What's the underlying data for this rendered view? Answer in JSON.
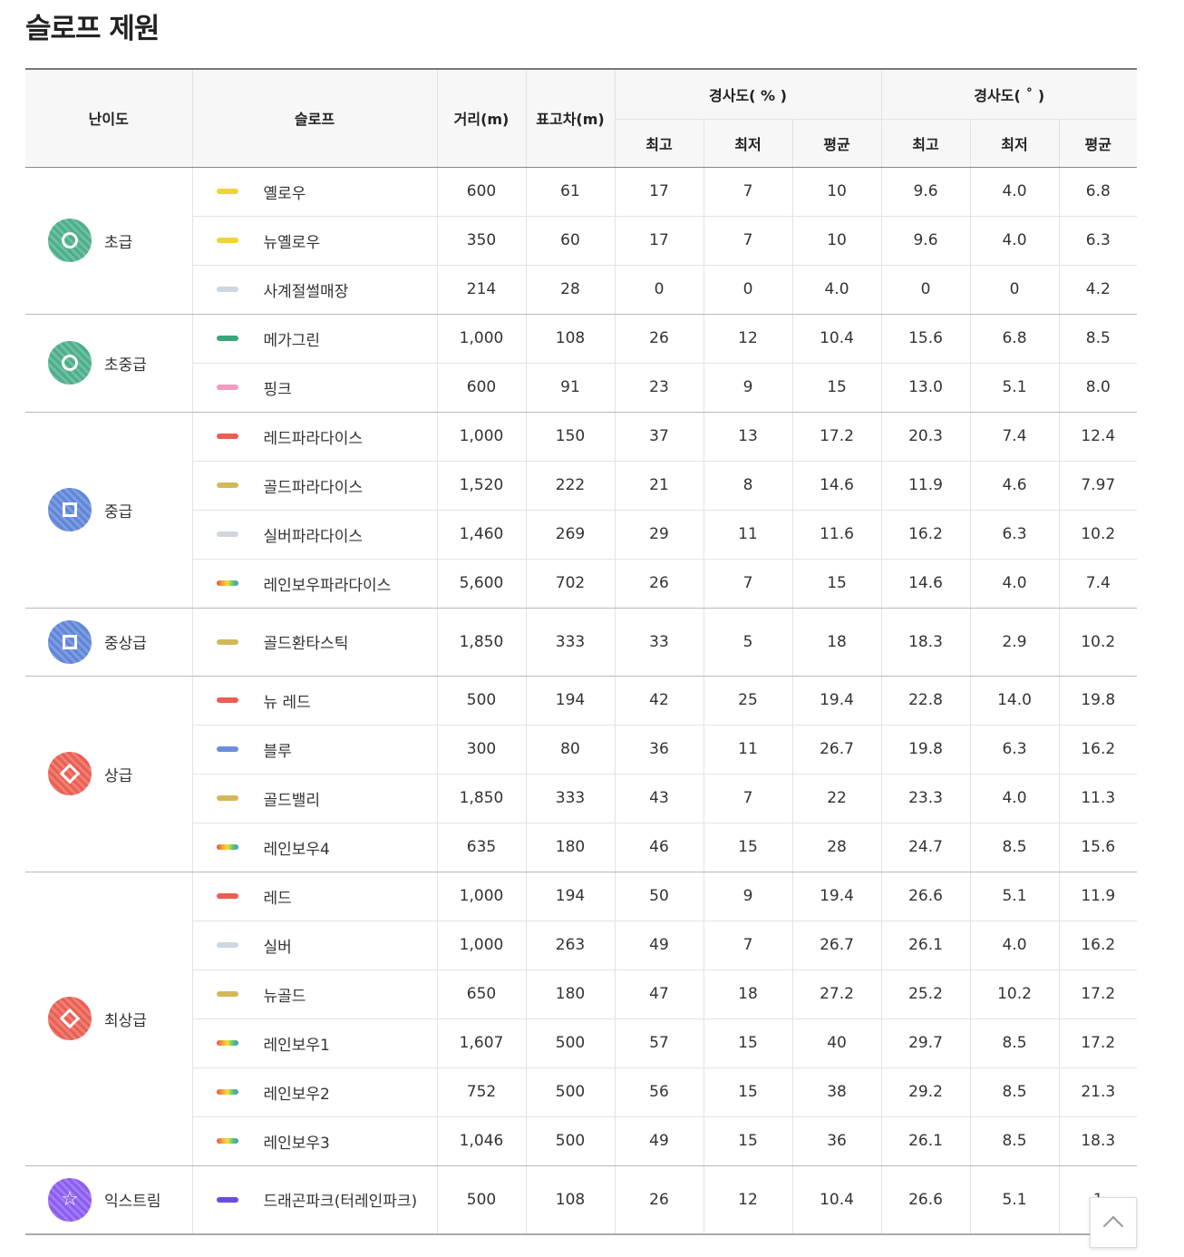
{
  "title": "슬로프 제원",
  "headers": {
    "level": "난이도",
    "slope": "슬로프",
    "distance": "거리(m)",
    "height": "표고차(m)",
    "grade_pct": "경사도( % )",
    "grade_deg": "경사도( ˚ )",
    "max": "최고",
    "min": "최저",
    "avg": "평균"
  },
  "levels": [
    {
      "name": "초급",
      "color": "#4caf8a",
      "shape": "circle",
      "slopes": [
        {
          "name": "옐로우",
          "swatch": "#f0d23c",
          "dist": "600",
          "height": "61",
          "p_max": "17",
          "p_min": "7",
          "p_avg": "10",
          "d_max": "9.6",
          "d_min": "4.0",
          "d_avg": "6.8"
        },
        {
          "name": "뉴옐로우",
          "swatch": "#f0d23c",
          "dist": "350",
          "height": "60",
          "p_max": "17",
          "p_min": "7",
          "p_avg": "10",
          "d_max": "9.6",
          "d_min": "4.0",
          "d_avg": "6.3"
        },
        {
          "name": "사계절썰매장",
          "swatch": "#cfd6df",
          "dist": "214",
          "height": "28",
          "p_max": "0",
          "p_min": "0",
          "p_avg": "4.0",
          "d_max": "0",
          "d_min": "0",
          "d_avg": "4.2"
        }
      ]
    },
    {
      "name": "초중급",
      "color": "#4caf8a",
      "shape": "circle",
      "slopes": [
        {
          "name": "메가그린",
          "swatch": "#3aa57a",
          "dist": "1,000",
          "height": "108",
          "p_max": "26",
          "p_min": "12",
          "p_avg": "10.4",
          "d_max": "15.6",
          "d_min": "6.8",
          "d_avg": "8.5"
        },
        {
          "name": "핑크",
          "swatch": "#f29bc2",
          "dist": "600",
          "height": "91",
          "p_max": "23",
          "p_min": "9",
          "p_avg": "15",
          "d_max": "13.0",
          "d_min": "5.1",
          "d_avg": "8.0"
        }
      ]
    },
    {
      "name": "중급",
      "color": "#5f86d8",
      "shape": "square",
      "slopes": [
        {
          "name": "레드파라다이스",
          "swatch": "#ea5f52",
          "dist": "1,000",
          "height": "150",
          "p_max": "37",
          "p_min": "13",
          "p_avg": "17.2",
          "d_max": "20.3",
          "d_min": "7.4",
          "d_avg": "12.4"
        },
        {
          "name": "골드파라다이스",
          "swatch": "#d3b85a",
          "dist": "1,520",
          "height": "222",
          "p_max": "21",
          "p_min": "8",
          "p_avg": "14.6",
          "d_max": "11.9",
          "d_min": "4.6",
          "d_avg": "7.97"
        },
        {
          "name": "실버파라다이스",
          "swatch": "#cfd6df",
          "dist": "1,460",
          "height": "269",
          "p_max": "29",
          "p_min": "11",
          "p_avg": "11.6",
          "d_max": "16.2",
          "d_min": "6.3",
          "d_avg": "10.2"
        },
        {
          "name": "레인보우파라다이스",
          "swatch": "rainbow",
          "dist": "5,600",
          "height": "702",
          "p_max": "26",
          "p_min": "7",
          "p_avg": "15",
          "d_max": "14.6",
          "d_min": "4.0",
          "d_avg": "7.4"
        }
      ]
    },
    {
      "name": "중상급",
      "color": "#5f86d8",
      "shape": "square",
      "slopes": [
        {
          "name": "골드환타스틱",
          "swatch": "#d3b85a",
          "dist": "1,850",
          "height": "333",
          "p_max": "33",
          "p_min": "5",
          "p_avg": "18",
          "d_max": "18.3",
          "d_min": "2.9",
          "d_avg": "10.2"
        }
      ]
    },
    {
      "name": "상급",
      "color": "#ea5f52",
      "shape": "diamond",
      "slopes": [
        {
          "name": "뉴 레드",
          "swatch": "#ea5f52",
          "dist": "500",
          "height": "194",
          "p_max": "42",
          "p_min": "25",
          "p_avg": "19.4",
          "d_max": "22.8",
          "d_min": "14.0",
          "d_avg": "19.8"
        },
        {
          "name": "블루",
          "swatch": "#6b8fdc",
          "dist": "300",
          "height": "80",
          "p_max": "36",
          "p_min": "11",
          "p_avg": "26.7",
          "d_max": "19.8",
          "d_min": "6.3",
          "d_avg": "16.2"
        },
        {
          "name": "골드밸리",
          "swatch": "#d3b85a",
          "dist": "1,850",
          "height": "333",
          "p_max": "43",
          "p_min": "7",
          "p_avg": "22",
          "d_max": "23.3",
          "d_min": "4.0",
          "d_avg": "11.3"
        },
        {
          "name": "레인보우4",
          "swatch": "rainbow",
          "dist": "635",
          "height": "180",
          "p_max": "46",
          "p_min": "15",
          "p_avg": "28",
          "d_max": "24.7",
          "d_min": "8.5",
          "d_avg": "15.6"
        }
      ]
    },
    {
      "name": "최상급",
      "color": "#ea5f52",
      "shape": "diamond",
      "slopes": [
        {
          "name": "레드",
          "swatch": "#ea5f52",
          "dist": "1,000",
          "height": "194",
          "p_max": "50",
          "p_min": "9",
          "p_avg": "19.4",
          "d_max": "26.6",
          "d_min": "5.1",
          "d_avg": "11.9"
        },
        {
          "name": "실버",
          "swatch": "#cfd6df",
          "dist": "1,000",
          "height": "263",
          "p_max": "49",
          "p_min": "7",
          "p_avg": "26.7",
          "d_max": "26.1",
          "d_min": "4.0",
          "d_avg": "16.2"
        },
        {
          "name": "뉴골드",
          "swatch": "#d3b85a",
          "dist": "650",
          "height": "180",
          "p_max": "47",
          "p_min": "18",
          "p_avg": "27.2",
          "d_max": "25.2",
          "d_min": "10.2",
          "d_avg": "17.2"
        },
        {
          "name": "레인보우1",
          "swatch": "rainbow",
          "dist": "1,607",
          "height": "500",
          "p_max": "57",
          "p_min": "15",
          "p_avg": "40",
          "d_max": "29.7",
          "d_min": "8.5",
          "d_avg": "17.2"
        },
        {
          "name": "레인보우2",
          "swatch": "rainbow",
          "dist": "752",
          "height": "500",
          "p_max": "56",
          "p_min": "15",
          "p_avg": "38",
          "d_max": "29.2",
          "d_min": "8.5",
          "d_avg": "21.3"
        },
        {
          "name": "레인보우3",
          "swatch": "rainbow",
          "dist": "1,046",
          "height": "500",
          "p_max": "49",
          "p_min": "15",
          "p_avg": "36",
          "d_max": "26.1",
          "d_min": "8.5",
          "d_avg": "18.3"
        }
      ]
    },
    {
      "name": "익스트림",
      "color": "#8a5cf0",
      "shape": "star",
      "slopes": [
        {
          "name": "드래곤파크(터레인파크)",
          "swatch": "#6c4be0",
          "dist": "500",
          "height": "108",
          "p_max": "26",
          "p_min": "12",
          "p_avg": "10.4",
          "d_max": "26.6",
          "d_min": "5.1",
          "d_avg": "1"
        }
      ]
    }
  ]
}
